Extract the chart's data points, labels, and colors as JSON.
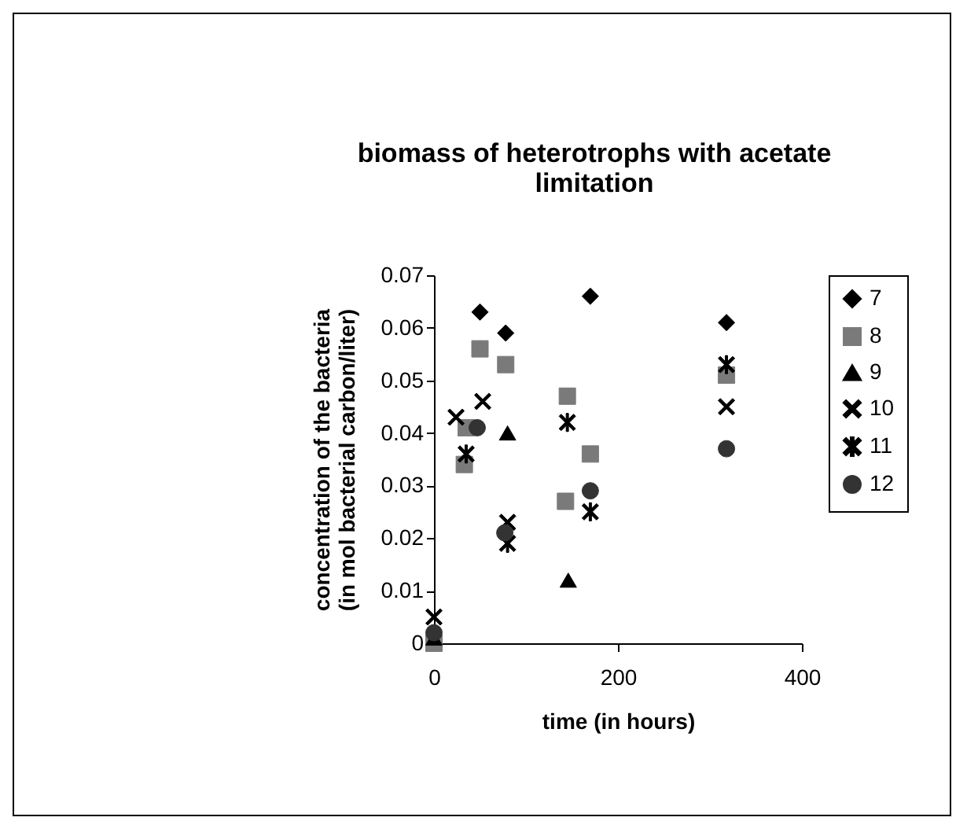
{
  "chart_data": {
    "type": "scatter",
    "title": [
      "biomass of heterotrophs with acetate",
      "limitation"
    ],
    "xlabel": "time (in hours)",
    "ylabel": [
      "concentration of the bacteria",
      "(in mol bacterial carbon/liter)"
    ],
    "xlim": [
      0,
      400
    ],
    "xticks": [
      0,
      200,
      400
    ],
    "ylim": [
      0,
      0.07
    ],
    "yticks": [
      0,
      0.01,
      0.02,
      0.03,
      0.04,
      0.05,
      0.06,
      0.07
    ],
    "grid": false,
    "legend": "right",
    "series": [
      {
        "name": "7",
        "color": "#000000",
        "marker": "diamond",
        "x": [
          50,
          78,
          170,
          318
        ],
        "values": [
          0.063,
          0.059,
          0.066,
          0.061
        ]
      },
      {
        "name": "8",
        "color": "#7a7a7a",
        "marker": "square",
        "x": [
          0,
          33,
          35,
          50,
          78,
          143,
          145,
          170,
          318
        ],
        "values": [
          0,
          0.034,
          0.041,
          0.056,
          0.053,
          0.027,
          0.047,
          0.036,
          0.051
        ]
      },
      {
        "name": "9",
        "color": "#000000",
        "marker": "triangle",
        "x": [
          0,
          80,
          146
        ],
        "values": [
          0.001,
          0.04,
          0.012
        ]
      },
      {
        "name": "10",
        "color": "#000000",
        "marker": "cross",
        "x": [
          0,
          24,
          53,
          80,
          318
        ],
        "values": [
          0.005,
          0.043,
          0.046,
          0.023,
          0.045
        ]
      },
      {
        "name": "11",
        "color": "#000000",
        "marker": "star",
        "x": [
          35,
          80,
          145,
          170,
          318
        ],
        "values": [
          0.036,
          0.019,
          0.042,
          0.025,
          0.053
        ]
      },
      {
        "name": "12",
        "color": "#333333",
        "marker": "circle",
        "x": [
          0,
          47,
          77,
          170,
          318
        ],
        "values": [
          0.002,
          0.041,
          0.021,
          0.029,
          0.037
        ]
      }
    ]
  }
}
